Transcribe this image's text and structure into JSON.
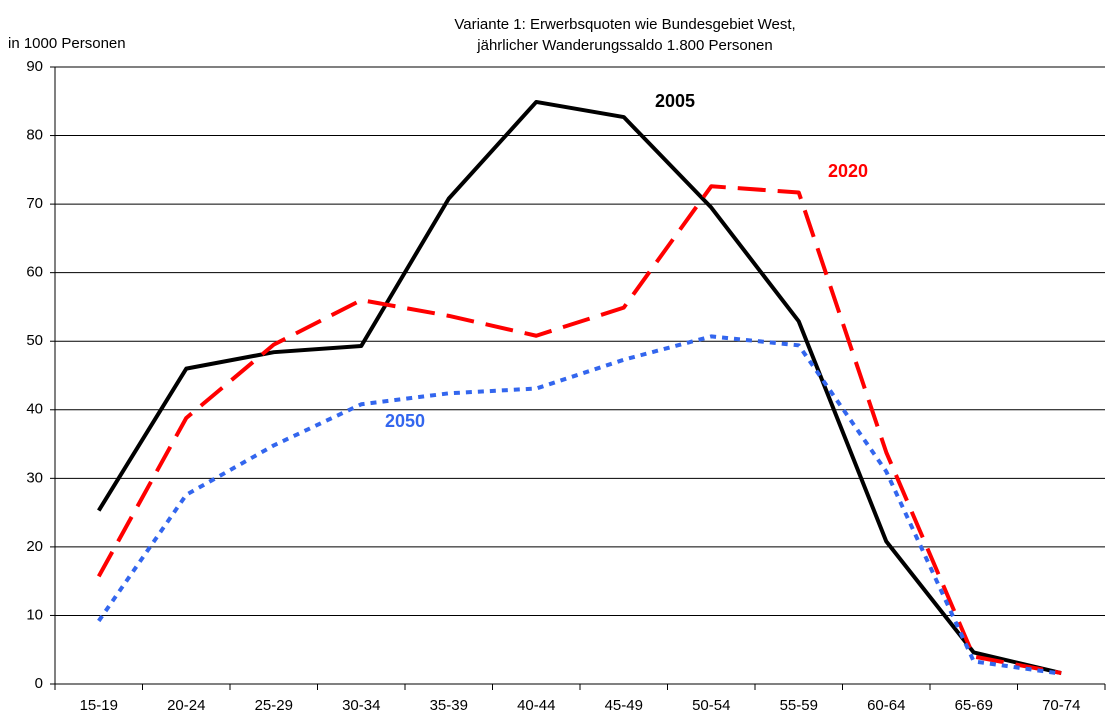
{
  "chart_data": {
    "type": "line",
    "title": "Variante 1: Erwerbsquoten wie Bundesgebiet West,",
    "subtitle": "jährlicher Wanderungssaldo 1.800 Personen",
    "y_label": "in 1000 Personen",
    "categories": [
      "15-19",
      "20-24",
      "25-29",
      "30-34",
      "35-39",
      "40-44",
      "45-49",
      "50-54",
      "55-59",
      "60-64",
      "65-69",
      "70-74"
    ],
    "series": [
      {
        "name": "2005",
        "color": "#000000",
        "dash": "solid",
        "values": [
          25.3,
          46,
          48.4,
          49.3,
          70.8,
          84.9,
          82.7,
          69.5,
          52.9,
          20.8,
          4.6,
          1.6
        ]
      },
      {
        "name": "2020",
        "color": "#ff0000",
        "dash": "dashed",
        "values": [
          15.7,
          38.8,
          49.5,
          56.0,
          53.7,
          50.8,
          54.9,
          72.6,
          71.7,
          33.8,
          4.0,
          1.6
        ]
      },
      {
        "name": "2050",
        "color": "#3366ee",
        "dash": "dotted",
        "values": [
          9.2,
          27.6,
          34.8,
          40.8,
          42.4,
          43.1,
          47.3,
          50.7,
          49.4,
          31.0,
          3.3,
          1.5
        ]
      }
    ],
    "ylim": [
      0,
      90
    ],
    "yticks": [
      0,
      10,
      20,
      30,
      40,
      50,
      60,
      70,
      80,
      90
    ],
    "grid": true
  }
}
